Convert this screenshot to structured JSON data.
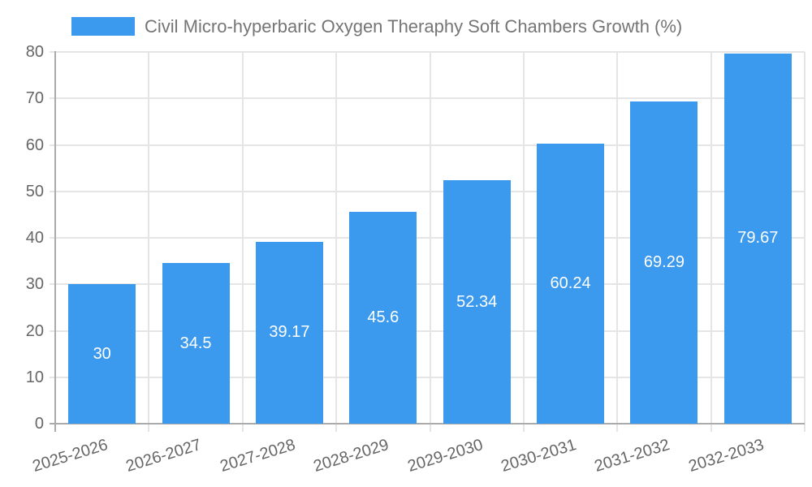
{
  "colors": {
    "bar": "#3b99ee",
    "grid_line": "#e5e5e5",
    "axis_line": "#ababab",
    "tick_label_text": "#666666",
    "legend_text": "#757575",
    "bar_value_text": "#ffffff",
    "background": "#ffffff"
  },
  "chart_data": {
    "type": "bar",
    "title": "Civil Micro-hyperbaric Oxygen Theraphy Soft Chambers Growth (%)",
    "categories": [
      "2025-2026",
      "2026-2027",
      "2027-2028",
      "2028-2029",
      "2029-2030",
      "2030-2031",
      "2031-2032",
      "2032-2033"
    ],
    "values": [
      30,
      34.5,
      39.17,
      45.6,
      52.34,
      60.24,
      69.29,
      79.67
    ],
    "value_labels": [
      "30",
      "34.5",
      "39.17",
      "45.6",
      "52.34",
      "60.24",
      "69.29",
      "79.67"
    ],
    "xlabel": "",
    "ylabel": "",
    "ylim": [
      0,
      80
    ],
    "yticks": [
      0,
      10,
      20,
      30,
      40,
      50,
      60,
      70,
      80
    ],
    "grid": true,
    "legend_position": "top",
    "x_tick_rotation_deg": -17,
    "bar_value_label_position": "center-inside"
  }
}
